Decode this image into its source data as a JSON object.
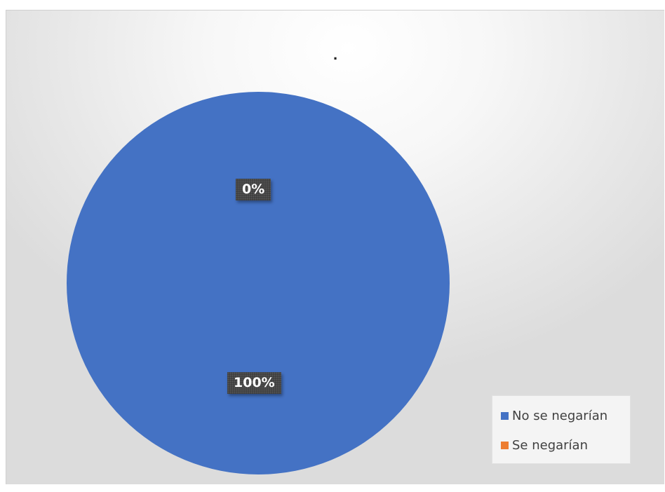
{
  "chart_data": {
    "type": "pie",
    "title": ".",
    "categories": [
      "No se negarían",
      "Se negarían"
    ],
    "values": [
      100,
      0
    ],
    "data_labels": [
      "100%",
      "0%"
    ],
    "colors": [
      "#4472C4",
      "#ED7D31"
    ],
    "legend_position": "bottom-right"
  }
}
